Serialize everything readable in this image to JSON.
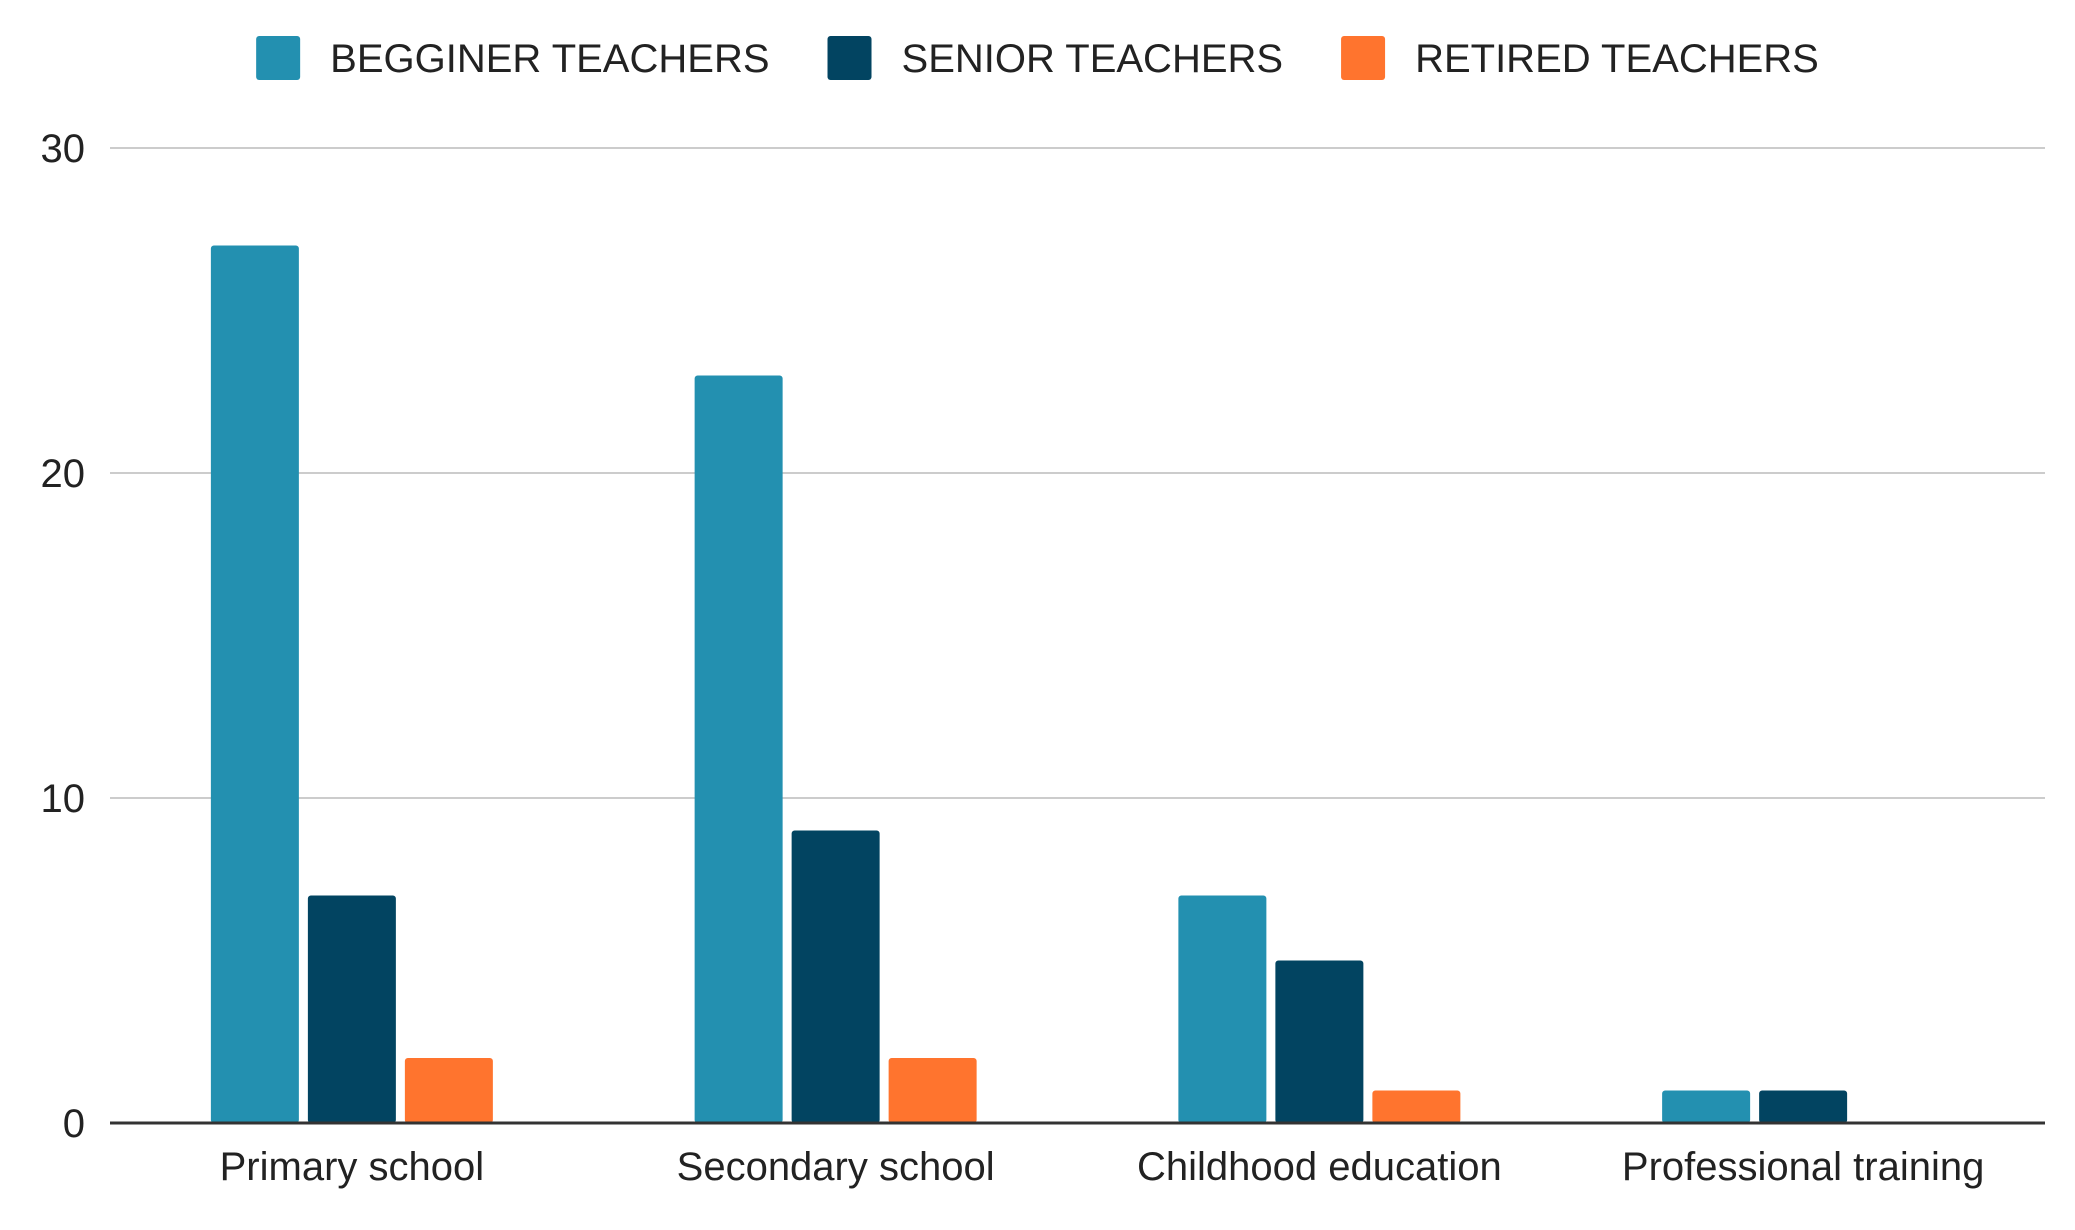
{
  "chart_data": {
    "type": "bar",
    "title": "",
    "xlabel": "",
    "ylabel": "",
    "categories": [
      "Primary school",
      "Secondary school",
      "Childhood education",
      "Professional training"
    ],
    "series": [
      {
        "name": "BEGGINER TEACHERS",
        "color": "#2390B0",
        "values": [
          27,
          23,
          7,
          1
        ]
      },
      {
        "name": "SENIOR TEACHERS",
        "color": "#024461",
        "values": [
          7,
          9,
          5,
          1
        ]
      },
      {
        "name": "RETIRED TEACHERS",
        "color": "#FF742E",
        "values": [
          2,
          2,
          1,
          0
        ]
      }
    ],
    "ylim": [
      0,
      30
    ],
    "yticks": [
      0,
      10,
      20,
      30
    ],
    "grid": true,
    "legend_position": "top"
  }
}
